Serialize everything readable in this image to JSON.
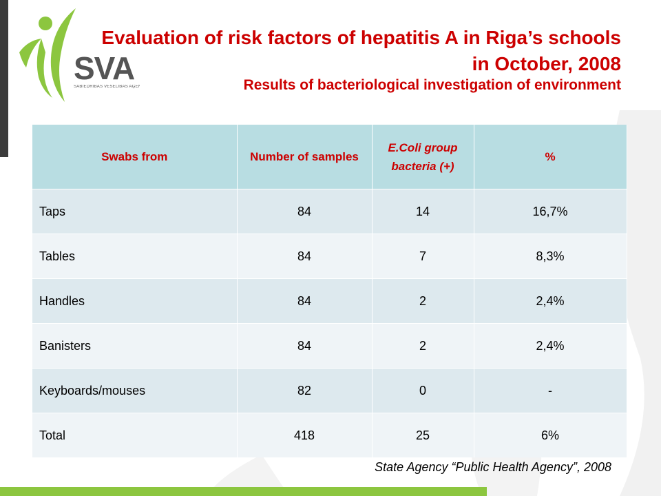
{
  "logo": {
    "text": "SVA",
    "subtext": "SABIEDRĪBAS VESELĪBAS AĢENTŪRA"
  },
  "title": "Evaluation of risk factors of hepatitis A in Riga’s schools in October, 2008",
  "subtitle": "Results of bacteriological investigation of environment",
  "table": {
    "headers": [
      "Swabs from",
      "Number of samples",
      "E.Coli group bacteria (+)",
      "%"
    ],
    "rows": [
      [
        "Taps",
        "84",
        "14",
        "16,7%"
      ],
      [
        "Tables",
        "84",
        "7",
        "8,3%"
      ],
      [
        "Handles",
        "84",
        "2",
        "2,4%"
      ],
      [
        "Banisters",
        "84",
        "2",
        "2,4%"
      ],
      [
        "Keyboards/mouses",
        "82",
        "0",
        "-"
      ],
      [
        "Total",
        "418",
        "25",
        "6%"
      ]
    ]
  },
  "source": "State Agency “Public Health Agency”, 2008",
  "colors": {
    "title": "#cc0000",
    "header_bg": "#b8dde2",
    "row_odd": "#dde9ee",
    "row_even": "#eff4f7",
    "accent_green": "#8cc63f",
    "logo_gray": "#555555"
  }
}
